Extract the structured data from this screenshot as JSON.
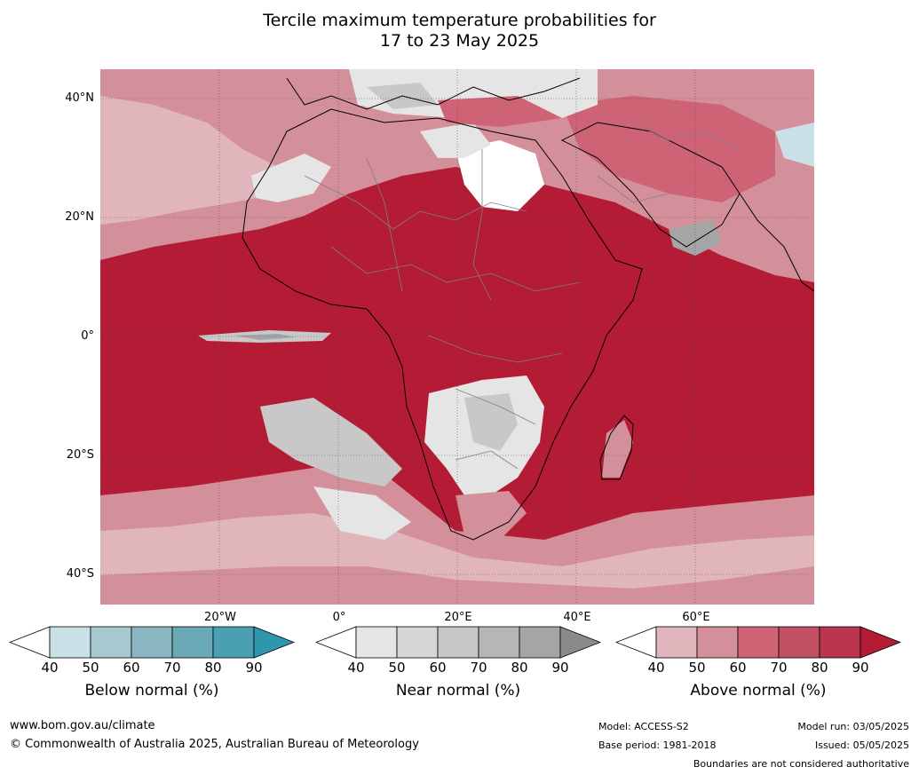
{
  "title": {
    "line1": "Tercile maximum temperature probabilities for",
    "line2": "17 to 23 May 2025"
  },
  "map": {
    "lat_labels": [
      "40°N",
      "20°N",
      "0°",
      "20°S",
      "40°S"
    ],
    "lon_labels": [
      "20°W",
      "0°",
      "20°E",
      "40°E",
      "60°E"
    ],
    "colors": {
      "above_90": "#b41c35",
      "above_80": "#c53d50",
      "above_70": "#cd6374",
      "above_60": "#d4909a",
      "above_50": "#e0b6bc",
      "near_40": "#e5e5e5",
      "near_60": "#c8c8c8",
      "near_80": "#a5a5a5",
      "below_50": "#c8e0e6",
      "borders": "#808080",
      "coastline": "#000000"
    }
  },
  "colorbars": [
    {
      "title": "Below normal (%)",
      "ticks": [
        "40",
        "50",
        "60",
        "70",
        "80",
        "90"
      ],
      "colors": [
        "#c8e0e6",
        "#a8c8cf",
        "#89b6c1",
        "#6aaab6",
        "#4a9fb1"
      ],
      "low_extend": "#ffffff",
      "high_extend": "#2f97ad"
    },
    {
      "title": "Near normal (%)",
      "ticks": [
        "40",
        "50",
        "60",
        "70",
        "80",
        "90"
      ],
      "colors": [
        "#e5e5e5",
        "#d6d6d6",
        "#c6c6c6",
        "#b6b6b6",
        "#a5a5a5"
      ],
      "low_extend": "#ffffff",
      "high_extend": "#8a8a8a"
    },
    {
      "title": "Above normal (%)",
      "ticks": [
        "40",
        "50",
        "60",
        "70",
        "80",
        "90"
      ],
      "colors": [
        "#e0b6bc",
        "#d4909a",
        "#cd6374",
        "#c24f62",
        "#b9364e"
      ],
      "low_extend": "#ffffff",
      "high_extend": "#b41c35"
    }
  ],
  "footer": {
    "website": "www.bom.gov.au/climate",
    "copyright": "© Commonwealth of Australia 2025, Australian Bureau of Meteorology",
    "model": "Model: ACCESS-S2",
    "base_period": "Base period: 1981-2018",
    "model_run": "Model run: 03/05/2025",
    "issued": "Issued: 05/05/2025",
    "disclaimer": "Boundaries are not considered authoritative"
  }
}
